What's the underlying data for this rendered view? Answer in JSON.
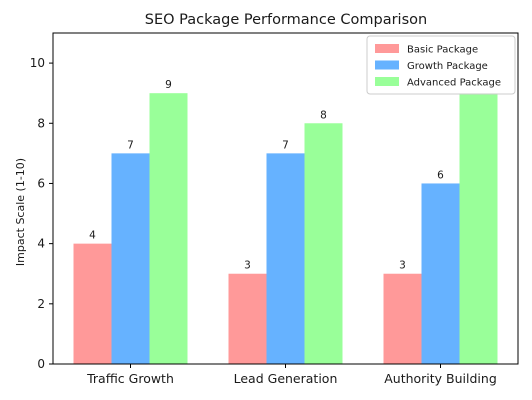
{
  "chart_data": {
    "type": "bar",
    "title": "SEO Package Performance Comparison",
    "xlabel": "",
    "ylabel": "Impact Scale (1-10)",
    "categories": [
      "Traffic Growth",
      "Lead Generation",
      "Authority Building"
    ],
    "series": [
      {
        "name": "Basic Package",
        "color": "#ff9999",
        "values": [
          4,
          3,
          3
        ]
      },
      {
        "name": "Growth Package",
        "color": "#66b2ff",
        "values": [
          7,
          7,
          6
        ]
      },
      {
        "name": "Advanced Package",
        "color": "#99ff99",
        "values": [
          9,
          8,
          9
        ]
      }
    ],
    "data_labels": [
      [
        "4",
        "3",
        "3"
      ],
      [
        "7",
        "7",
        "6"
      ],
      [
        "9",
        "8",
        ""
      ]
    ],
    "ylim": [
      0,
      11
    ],
    "yticks": [
      0,
      2,
      4,
      6,
      8,
      10
    ],
    "grid": false,
    "legend_position": "top-right"
  }
}
